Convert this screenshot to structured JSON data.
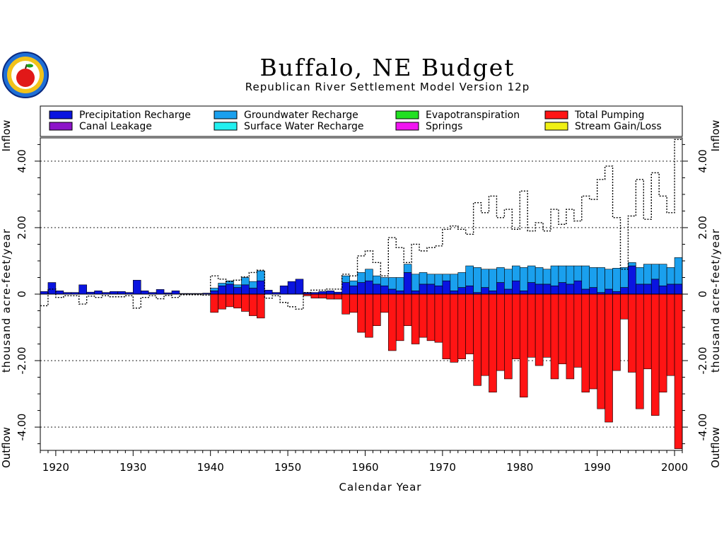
{
  "title": "Buffalo, NE Budget",
  "subtitle": "Republican River Settlement Model Version 12p",
  "chart_data": {
    "type": "bar",
    "xlabel": "Calendar Year",
    "ylabel": "thousand acre-feet/year",
    "side_labels": {
      "top": "Inflow",
      "bottom": "Outflow"
    },
    "xlim": [
      1918,
      2001
    ],
    "ylim": [
      -4.7,
      4.7
    ],
    "xticks": [
      "1920",
      "1930",
      "1940",
      "1950",
      "1960",
      "1970",
      "1980",
      "1990",
      "2000"
    ],
    "yticks": [
      "-4.00",
      "-2.00",
      "0",
      "2.00",
      "4.00"
    ],
    "grid": "dashed horizontal at ±2 and ±4",
    "legend_position": "top",
    "legend": [
      {
        "name": "Precipitation Recharge",
        "color": "#0a14e0"
      },
      {
        "name": "Groundwater Recharge",
        "color": "#1aa0ee"
      },
      {
        "name": "Evapotranspiration",
        "color": "#22e022"
      },
      {
        "name": "Total Pumping",
        "color": "#ff1414"
      },
      {
        "name": "Canal Leakage",
        "color": "#8c14c8"
      },
      {
        "name": "Surface Water Recharge",
        "color": "#22f0f0"
      },
      {
        "name": "Springs",
        "color": "#f014f0"
      },
      {
        "name": "Stream Gain/Loss",
        "color": "#f0f014"
      }
    ],
    "years": [
      1918,
      1919,
      1920,
      1921,
      1922,
      1923,
      1924,
      1925,
      1926,
      1927,
      1928,
      1929,
      1930,
      1931,
      1932,
      1933,
      1934,
      1935,
      1936,
      1937,
      1938,
      1939,
      1940,
      1941,
      1942,
      1943,
      1944,
      1945,
      1946,
      1947,
      1948,
      1949,
      1950,
      1951,
      1952,
      1953,
      1954,
      1955,
      1956,
      1957,
      1958,
      1959,
      1960,
      1961,
      1962,
      1963,
      1964,
      1965,
      1966,
      1967,
      1968,
      1969,
      1970,
      1971,
      1972,
      1973,
      1974,
      1975,
      1976,
      1977,
      1978,
      1979,
      1980,
      1981,
      1982,
      1983,
      1984,
      1985,
      1986,
      1987,
      1988,
      1989,
      1990,
      1991,
      1992,
      1993,
      1994,
      1995,
      1996,
      1997,
      1998,
      1999,
      2000
    ],
    "series": [
      {
        "name": "Precipitation Recharge",
        "values": [
          0.08,
          0.35,
          0.1,
          0.05,
          0.05,
          0.28,
          0.06,
          0.1,
          0.05,
          0.08,
          0.08,
          0.05,
          0.42,
          0.1,
          0.05,
          0.14,
          0.04,
          0.1,
          0.02,
          0.02,
          0.02,
          0.03,
          0.1,
          0.25,
          0.3,
          0.2,
          0.28,
          0.18,
          0.4,
          0.12,
          0.05,
          0.25,
          0.38,
          0.45,
          0.05,
          0.05,
          0.08,
          0.1,
          0.06,
          0.35,
          0.25,
          0.35,
          0.4,
          0.3,
          0.25,
          0.15,
          0.1,
          0.65,
          0.1,
          0.3,
          0.3,
          0.25,
          0.4,
          0.1,
          0.2,
          0.25,
          0.05,
          0.2,
          0.1,
          0.35,
          0.15,
          0.4,
          0.1,
          0.35,
          0.3,
          0.3,
          0.25,
          0.35,
          0.3,
          0.4,
          0.15,
          0.2,
          0.05,
          0.15,
          0.08,
          0.2,
          0.85,
          0.3,
          0.3,
          0.45,
          0.25,
          0.3,
          0.3
        ]
      },
      {
        "name": "Groundwater Recharge",
        "values": [
          0,
          0,
          0,
          0,
          0,
          0,
          0,
          0,
          0,
          0,
          0,
          0,
          0,
          0,
          0,
          0,
          0,
          0,
          0,
          0,
          0,
          0,
          0.08,
          0.08,
          0.1,
          0.08,
          0.22,
          0.2,
          0.3,
          0,
          0,
          0,
          0,
          0,
          0,
          0,
          0,
          0,
          0,
          0.2,
          0.15,
          0.3,
          0.35,
          0.25,
          0.25,
          0.35,
          0.4,
          0.25,
          0.5,
          0.35,
          0.3,
          0.35,
          0.2,
          0.5,
          0.45,
          0.6,
          0.75,
          0.55,
          0.65,
          0.45,
          0.6,
          0.45,
          0.7,
          0.5,
          0.5,
          0.45,
          0.6,
          0.5,
          0.55,
          0.45,
          0.7,
          0.6,
          0.75,
          0.6,
          0.7,
          0.6,
          0.1,
          0.5,
          0.6,
          0.45,
          0.65,
          0.5,
          0.8
        ]
      },
      {
        "name": "Total Pumping",
        "values": [
          0,
          0,
          0,
          0,
          0,
          0,
          0,
          0,
          0,
          0,
          0,
          0,
          0,
          0,
          0,
          0,
          0,
          0,
          0,
          0,
          0,
          0,
          -0.55,
          -0.45,
          -0.38,
          -0.42,
          -0.52,
          -0.65,
          -0.72,
          0,
          0,
          0,
          0,
          0,
          -0.05,
          -0.12,
          -0.12,
          -0.15,
          -0.15,
          -0.6,
          -0.55,
          -1.15,
          -1.3,
          -0.95,
          -0.55,
          -1.7,
          -1.4,
          -0.95,
          -1.5,
          -1.3,
          -1.4,
          -1.45,
          -1.95,
          -2.05,
          -1.95,
          -1.8,
          -2.75,
          -2.45,
          -2.95,
          -2.3,
          -2.55,
          -1.95,
          -3.1,
          -1.9,
          -2.15,
          -1.9,
          -2.55,
          -2.1,
          -2.55,
          -2.2,
          -2.95,
          -2.85,
          -3.45,
          -3.85,
          -2.3,
          -0.75,
          -2.35,
          -3.45,
          -2.25,
          -3.65,
          -2.95,
          -2.45,
          -4.65
        ]
      }
    ],
    "net_flow_line": [
      -0.35,
      0.15,
      -0.1,
      -0.05,
      -0.05,
      -0.3,
      -0.06,
      -0.1,
      -0.05,
      -0.08,
      -0.08,
      -0.05,
      -0.42,
      -0.1,
      -0.05,
      -0.14,
      -0.04,
      -0.1,
      -0.02,
      -0.02,
      -0.02,
      -0.03,
      0.55,
      0.45,
      0.38,
      0.42,
      0.52,
      0.65,
      0.72,
      -0.12,
      -0.05,
      -0.25,
      -0.38,
      -0.45,
      0.05,
      0.12,
      0.12,
      0.15,
      0.15,
      0.6,
      0.55,
      1.15,
      1.3,
      0.95,
      0.55,
      1.7,
      1.4,
      0.95,
      1.5,
      1.3,
      1.4,
      1.45,
      1.95,
      2.05,
      1.95,
      1.8,
      2.75,
      2.45,
      2.95,
      2.3,
      2.55,
      1.95,
      3.1,
      1.9,
      2.15,
      1.9,
      2.55,
      2.1,
      2.55,
      2.2,
      2.95,
      2.85,
      3.45,
      3.85,
      2.3,
      0.75,
      2.35,
      3.45,
      2.25,
      3.65,
      2.95,
      2.45,
      4.65
    ]
  }
}
